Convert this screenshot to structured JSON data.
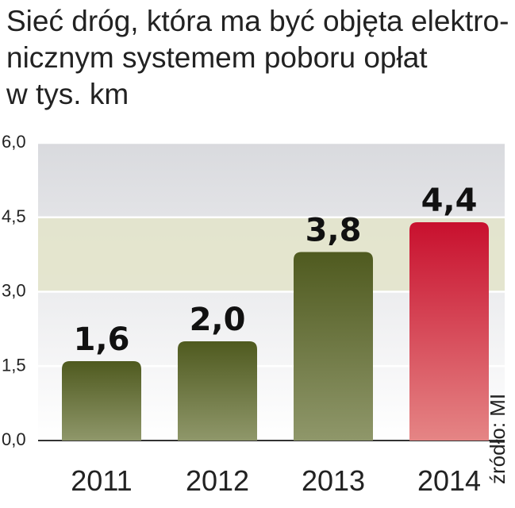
{
  "title_lines": [
    "Sieć dróg, która ma być objęta elektro-",
    "nicznym systemem poboru opłat",
    "w tys. km"
  ],
  "source": "źródło: MI",
  "colors": {
    "bar_default_top": "#4f5a1f",
    "bar_default_bottom": "#8f976a",
    "bar_highlight_top": "#c8102e",
    "bar_highlight_bottom": "#e58585",
    "band": "#e3e4c9",
    "background_top": "#d9dade",
    "background_bottom": "#ffffff"
  },
  "chart_data": {
    "type": "bar",
    "categories": [
      "2011",
      "2012",
      "2013",
      "2014"
    ],
    "values": [
      1.6,
      2.0,
      3.8,
      4.4
    ],
    "value_labels": [
      "1,6",
      "2,0",
      "3,8",
      "4,4"
    ],
    "highlight_index": 3,
    "ylim": [
      0,
      6
    ],
    "yticks": [
      0,
      1.5,
      3,
      4.5,
      6
    ],
    "ytick_labels": [
      "0,0",
      "1,5",
      "3,0",
      "4,5",
      "6,0"
    ],
    "grid": true
  }
}
